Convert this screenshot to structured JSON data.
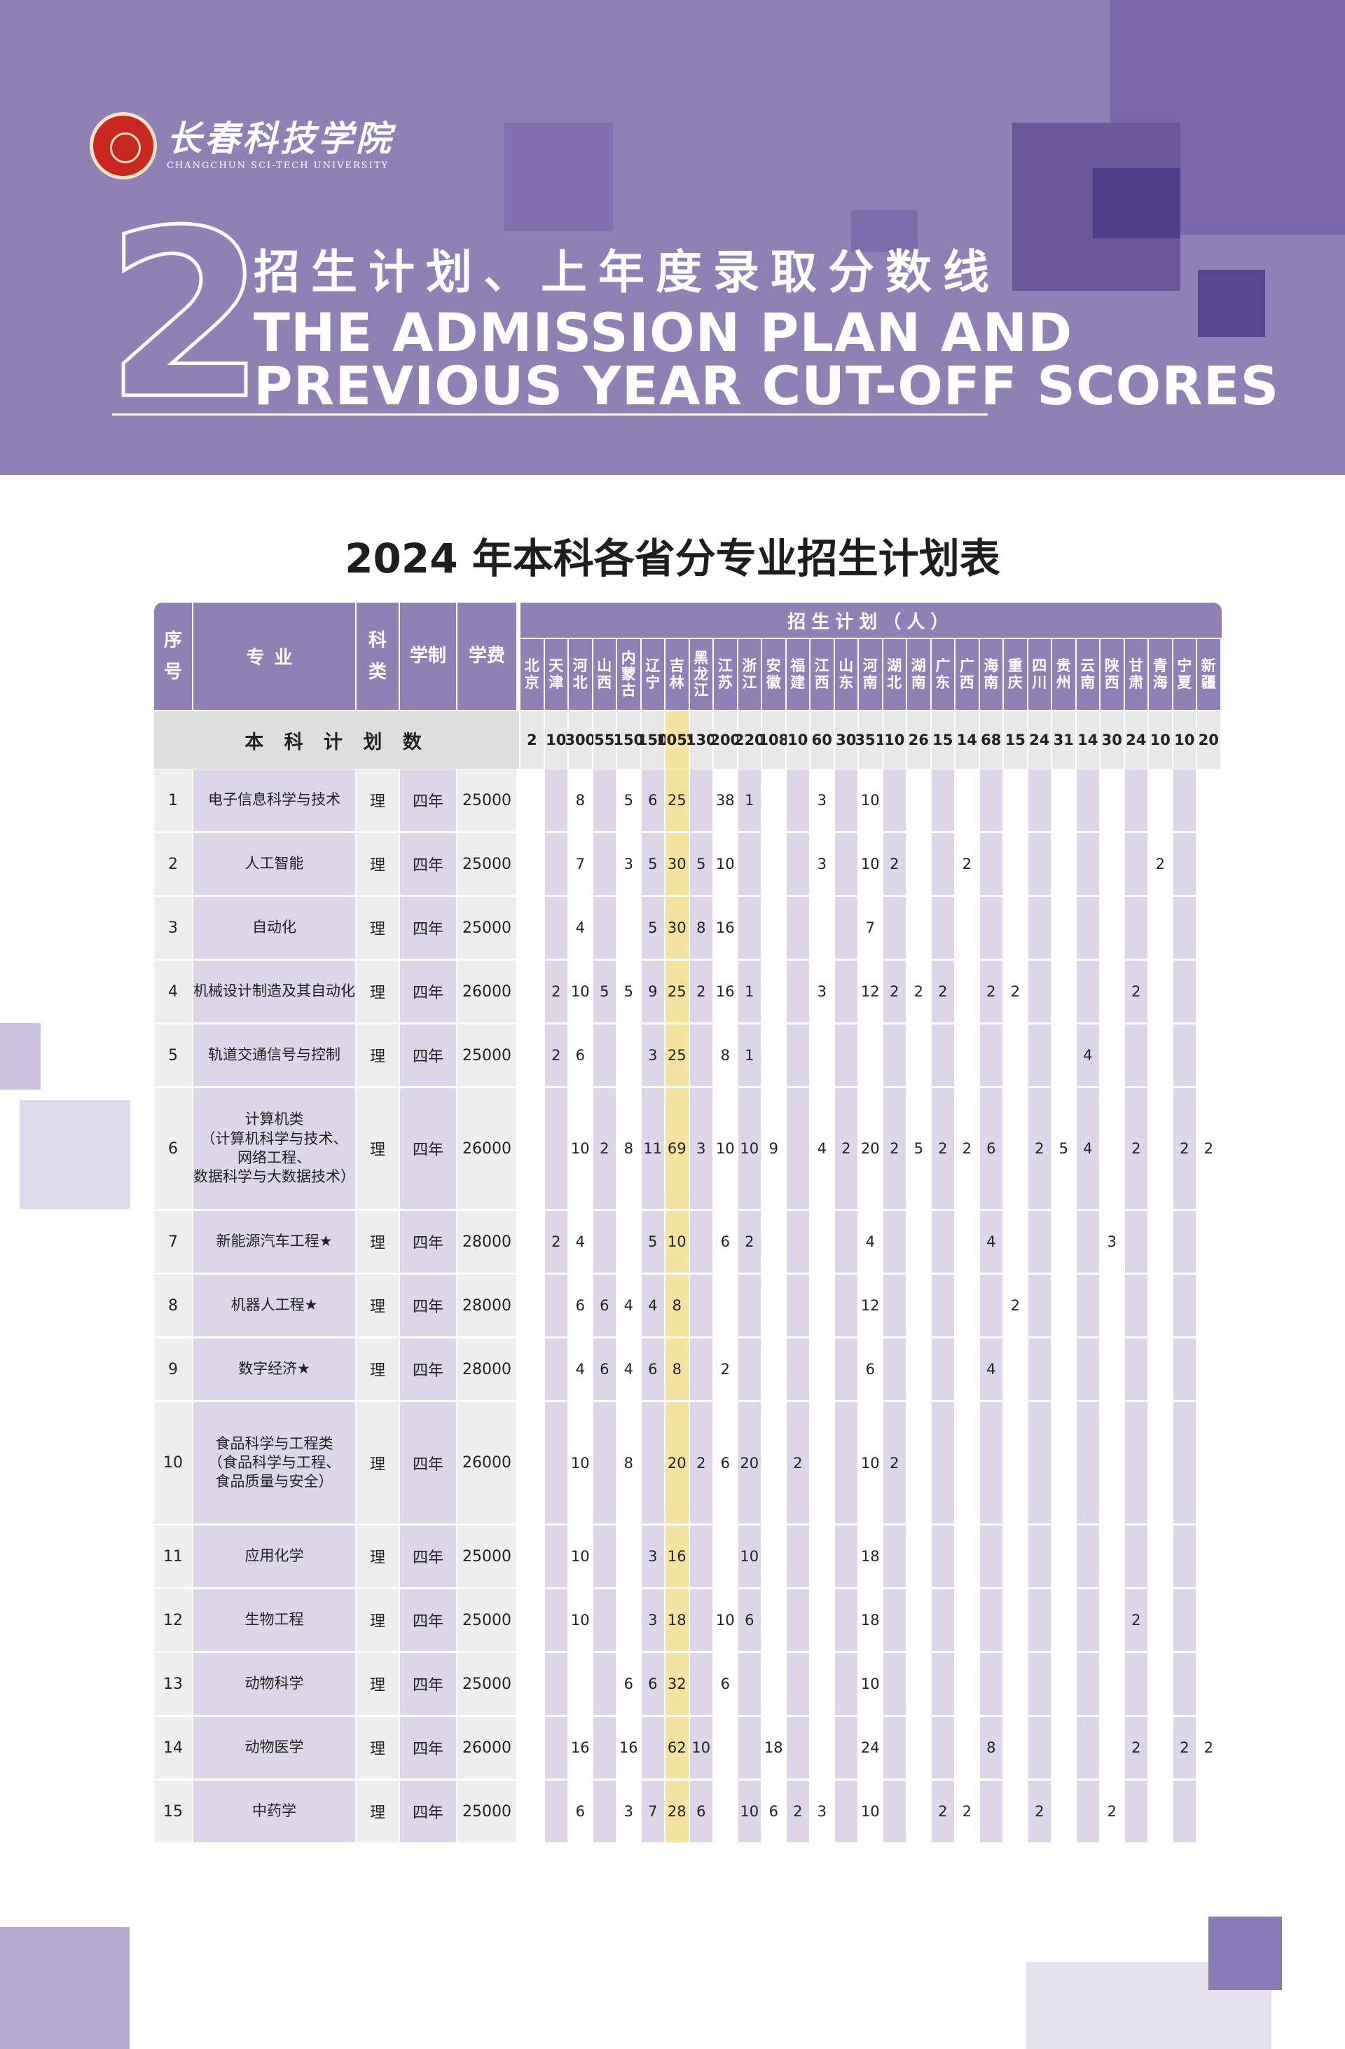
{
  "colors": {
    "header_bg": "#8f80b6",
    "accent_purple": "#6c5a9e",
    "light_purple": "#dcd6e8",
    "row_gray": "#eeeeee",
    "highlight_yellow": "#f4e2a0"
  },
  "logo": {
    "name_cn": "长春科技学院",
    "name_en": "CHANGCHUN SCI-TECH UNIVERSITY"
  },
  "section": {
    "number": "2",
    "title_cn": "招生计划、上年度录取分数线",
    "title_en_line1": "THE ADMISSION PLAN AND",
    "title_en_line2": "PREVIOUS YEAR CUT-OFF SCORES"
  },
  "table_title": "2024 年本科各省分专业招生计划表",
  "table": {
    "headers": {
      "index": "序号",
      "major": "专业",
      "category": "科类",
      "duration": "学制",
      "fee": "学费",
      "plan": "招生计划（人）"
    },
    "provinces": [
      "北京",
      "天津",
      "河北",
      "山西",
      "内蒙古",
      "辽宁",
      "吉林",
      "黑龙江",
      "江苏",
      "浙江",
      "安徽",
      "福建",
      "江西",
      "山东",
      "河南",
      "湖北",
      "湖南",
      "广东",
      "广西",
      "海南",
      "重庆",
      "四川",
      "贵州",
      "云南",
      "陕西",
      "甘肃",
      "青海",
      "宁夏",
      "新疆"
    ],
    "totals_label": "本 科 计 划 数",
    "totals": [
      "2",
      "10",
      "300",
      "55",
      "150",
      "150",
      "1055",
      "130",
      "200",
      "220",
      "108",
      "10",
      "60",
      "30",
      "351",
      "10",
      "26",
      "15",
      "14",
      "68",
      "15",
      "24",
      "31",
      "14",
      "30",
      "24",
      "10",
      "10",
      "20"
    ],
    "rows": [
      {
        "no": "1",
        "major": [
          "电子信息科学与技术"
        ],
        "category": "理",
        "duration": "四年",
        "fee": "25000",
        "values": [
          "",
          "",
          "8",
          "",
          "5",
          "6",
          "25",
          "",
          "38",
          "1",
          "",
          "",
          "3",
          "",
          "10",
          "",
          "",
          "",
          "",
          "",
          "",
          "",
          "",
          "",
          "",
          "",
          "",
          "",
          ""
        ]
      },
      {
        "no": "2",
        "major": [
          "人工智能"
        ],
        "category": "理",
        "duration": "四年",
        "fee": "25000",
        "values": [
          "",
          "",
          "7",
          "",
          "3",
          "5",
          "30",
          "5",
          "10",
          "",
          "",
          "",
          "3",
          "",
          "10",
          "2",
          "",
          "",
          "2",
          "",
          "",
          "",
          "",
          "",
          "",
          "",
          "2",
          "",
          ""
        ]
      },
      {
        "no": "3",
        "major": [
          "自动化"
        ],
        "category": "理",
        "duration": "四年",
        "fee": "25000",
        "values": [
          "",
          "",
          "4",
          "",
          "",
          "5",
          "30",
          "8",
          "16",
          "",
          "",
          "",
          "",
          "",
          "7",
          "",
          "",
          "",
          "",
          "",
          "",
          "",
          "",
          "",
          "",
          "",
          "",
          "",
          ""
        ]
      },
      {
        "no": "4",
        "major": [
          "机械设计制造及其自动化"
        ],
        "category": "理",
        "duration": "四年",
        "fee": "26000",
        "values": [
          "",
          "2",
          "10",
          "5",
          "5",
          "9",
          "25",
          "2",
          "16",
          "1",
          "",
          "",
          "3",
          "",
          "12",
          "2",
          "2",
          "2",
          "",
          "2",
          "2",
          "",
          "",
          "",
          "",
          "2",
          "",
          "",
          ""
        ]
      },
      {
        "no": "5",
        "major": [
          "轨道交通信号与控制"
        ],
        "category": "理",
        "duration": "四年",
        "fee": "25000",
        "values": [
          "",
          "2",
          "6",
          "",
          "",
          "3",
          "25",
          "",
          "8",
          "1",
          "",
          "",
          "",
          "",
          "",
          "",
          "",
          "",
          "",
          "",
          "",
          "",
          "",
          "4",
          "",
          "",
          "",
          "",
          ""
        ]
      },
      {
        "no": "6",
        "major": [
          "计算机类",
          "（计算机科学与技术、",
          "网络工程、",
          "数据科学与大数据技术）"
        ],
        "category": "理",
        "duration": "四年",
        "fee": "26000",
        "values": [
          "",
          "",
          "10",
          "2",
          "8",
          "11",
          "69",
          "3",
          "10",
          "10",
          "9",
          "",
          "4",
          "2",
          "20",
          "2",
          "5",
          "2",
          "2",
          "6",
          "",
          "2",
          "5",
          "4",
          "",
          "2",
          "",
          "2",
          "2"
        ]
      },
      {
        "no": "7",
        "major": [
          "新能源汽车工程★"
        ],
        "category": "理",
        "duration": "四年",
        "fee": "28000",
        "values": [
          "",
          "2",
          "4",
          "",
          "",
          "5",
          "10",
          "",
          "6",
          "2",
          "",
          "",
          "",
          "",
          "4",
          "",
          "",
          "",
          "",
          "4",
          "",
          "",
          "",
          "",
          "3",
          "",
          "",
          "",
          ""
        ]
      },
      {
        "no": "8",
        "major": [
          "机器人工程★"
        ],
        "category": "理",
        "duration": "四年",
        "fee": "28000",
        "values": [
          "",
          "",
          "6",
          "6",
          "4",
          "4",
          "8",
          "",
          "",
          "",
          "",
          "",
          "",
          "",
          "12",
          "",
          "",
          "",
          "",
          "",
          "2",
          "",
          "",
          "",
          "",
          "",
          "",
          "",
          ""
        ]
      },
      {
        "no": "9",
        "major": [
          "数字经济★"
        ],
        "category": "理",
        "duration": "四年",
        "fee": "28000",
        "values": [
          "",
          "",
          "4",
          "6",
          "4",
          "6",
          "8",
          "",
          "2",
          "",
          "",
          "",
          "",
          "",
          "6",
          "",
          "",
          "",
          "",
          "4",
          "",
          "",
          "",
          "",
          "",
          "",
          "",
          "",
          ""
        ]
      },
      {
        "no": "10",
        "major": [
          "食品科学与工程类",
          "（食品科学与工程、",
          "食品质量与安全）"
        ],
        "category": "理",
        "duration": "四年",
        "fee": "26000",
        "values": [
          "",
          "",
          "10",
          "",
          "8",
          "",
          "20",
          "2",
          "6",
          "20",
          "",
          "2",
          "",
          "",
          "10",
          "2",
          "",
          "",
          "",
          "",
          "",
          "",
          "",
          "",
          "",
          "",
          "",
          "",
          ""
        ]
      },
      {
        "no": "11",
        "major": [
          "应用化学"
        ],
        "category": "理",
        "duration": "四年",
        "fee": "25000",
        "values": [
          "",
          "",
          "10",
          "",
          "",
          "3",
          "16",
          "",
          "",
          "10",
          "",
          "",
          "",
          "",
          "18",
          "",
          "",
          "",
          "",
          "",
          "",
          "",
          "",
          "",
          "",
          "",
          "",
          "",
          ""
        ]
      },
      {
        "no": "12",
        "major": [
          "生物工程"
        ],
        "category": "理",
        "duration": "四年",
        "fee": "25000",
        "values": [
          "",
          "",
          "10",
          "",
          "",
          "3",
          "18",
          "",
          "10",
          "6",
          "",
          "",
          "",
          "",
          "18",
          "",
          "",
          "",
          "",
          "",
          "",
          "",
          "",
          "",
          "",
          "2",
          "",
          "",
          ""
        ]
      },
      {
        "no": "13",
        "major": [
          "动物科学"
        ],
        "category": "理",
        "duration": "四年",
        "fee": "25000",
        "values": [
          "",
          "",
          "",
          "",
          "6",
          "6",
          "32",
          "",
          "6",
          "",
          "",
          "",
          "",
          "",
          "10",
          "",
          "",
          "",
          "",
          "",
          "",
          "",
          "",
          "",
          "",
          "",
          "",
          "",
          ""
        ]
      },
      {
        "no": "14",
        "major": [
          "动物医学"
        ],
        "category": "理",
        "duration": "四年",
        "fee": "26000",
        "values": [
          "",
          "",
          "16",
          "",
          "16",
          "",
          "62",
          "10",
          "",
          "",
          "18",
          "",
          "",
          "",
          "24",
          "",
          "",
          "",
          "",
          "8",
          "",
          "",
          "",
          "",
          "",
          "2",
          "",
          "2",
          "2"
        ]
      },
      {
        "no": "15",
        "major": [
          "中药学"
        ],
        "category": "理",
        "duration": "四年",
        "fee": "25000",
        "values": [
          "",
          "",
          "6",
          "",
          "3",
          "7",
          "28",
          "6",
          "",
          "10",
          "6",
          "2",
          "3",
          "",
          "10",
          "",
          "",
          "2",
          "2",
          "",
          "",
          "2",
          "",
          "",
          "2",
          "",
          "",
          "",
          ""
        ]
      }
    ]
  }
}
